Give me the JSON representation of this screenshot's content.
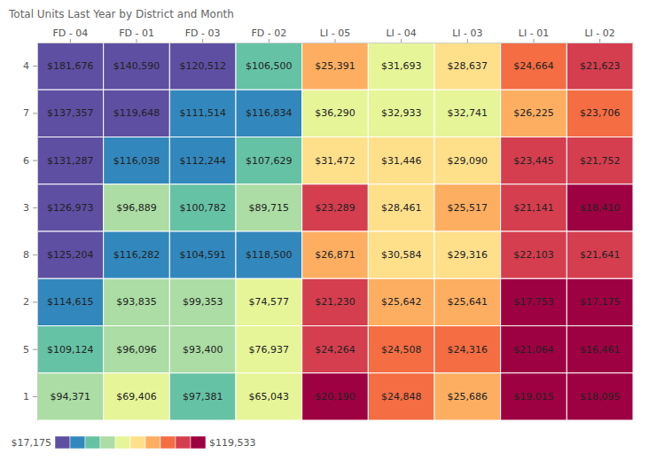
{
  "chart_data": {
    "type": "heatmap",
    "title": "Total Units Last Year by District and Month",
    "columns": [
      "FD - 04",
      "FD - 01",
      "FD - 03",
      "FD - 02",
      "LI - 05",
      "LI - 04",
      "LI - 03",
      "LI - 01",
      "LI - 02"
    ],
    "rows": [
      "4",
      "7",
      "6",
      "3",
      "8",
      "2",
      "5",
      "1"
    ],
    "values": [
      [
        181676,
        140590,
        120512,
        106500,
        25391,
        31693,
        28637,
        24664,
        21623
      ],
      [
        137357,
        119648,
        111514,
        116834,
        36290,
        32933,
        32741,
        26225,
        23706
      ],
      [
        131287,
        116038,
        112244,
        107629,
        31472,
        31446,
        29090,
        23445,
        21752
      ],
      [
        126973,
        96889,
        100782,
        89715,
        23289,
        28461,
        25517,
        21141,
        18410
      ],
      [
        125204,
        116282,
        104591,
        118500,
        26871,
        30584,
        29316,
        22103,
        21641
      ],
      [
        114615,
        93835,
        99353,
        74577,
        21230,
        25642,
        25641,
        17753,
        17175
      ],
      [
        109124,
        96096,
        93400,
        76937,
        24264,
        24508,
        24316,
        21064,
        16461
      ],
      [
        94371,
        69406,
        97381,
        65043,
        20190,
        24848,
        25686,
        19015,
        18095
      ]
    ],
    "value_labels": [
      [
        "$181,676",
        "$140,590",
        "$120,512",
        "$106,500",
        "$25,391",
        "$31,693",
        "$28,637",
        "$24,664",
        "$21,623"
      ],
      [
        "$137,357",
        "$119,648",
        "$111,514",
        "$116,834",
        "$36,290",
        "$32,933",
        "$32,741",
        "$26,225",
        "$23,706"
      ],
      [
        "$131,287",
        "$116,038",
        "$112,244",
        "$107,629",
        "$31,472",
        "$31,446",
        "$29,090",
        "$23,445",
        "$21,752"
      ],
      [
        "$126,973",
        "$96,889",
        "$100,782",
        "$89,715",
        "$23,289",
        "$28,461",
        "$25,517",
        "$21,141",
        "$18,410"
      ],
      [
        "$125,204",
        "$116,282",
        "$104,591",
        "$118,500",
        "$26,871",
        "$30,584",
        "$29,316",
        "$22,103",
        "$21,641"
      ],
      [
        "$114,615",
        "$93,835",
        "$99,353",
        "$74,577",
        "$21,230",
        "$25,642",
        "$25,641",
        "$17,753",
        "$17,175"
      ],
      [
        "$109,124",
        "$96,096",
        "$93,400",
        "$76,937",
        "$24,264",
        "$24,508",
        "$24,316",
        "$21,064",
        "$16,461"
      ],
      [
        "$94,371",
        "$69,406",
        "$97,381",
        "$65,043",
        "$20,190",
        "$24,848",
        "$25,686",
        "$19,015",
        "$18,095"
      ]
    ],
    "colors": [
      [
        "#5e4fa2",
        "#5e4fa2",
        "#5e4fa2",
        "#66c2a5",
        "#fdae61",
        "#e6f598",
        "#fee08b",
        "#f46d43",
        "#d53e4f"
      ],
      [
        "#5e4fa2",
        "#5e4fa2",
        "#3288bd",
        "#3288bd",
        "#e6f598",
        "#e6f598",
        "#e6f598",
        "#fdae61",
        "#f46d43"
      ],
      [
        "#5e4fa2",
        "#3288bd",
        "#3288bd",
        "#66c2a5",
        "#fee08b",
        "#fee08b",
        "#fee08b",
        "#d53e4f",
        "#d53e4f"
      ],
      [
        "#5e4fa2",
        "#abdda4",
        "#66c2a5",
        "#abdda4",
        "#d53e4f",
        "#fee08b",
        "#fdae61",
        "#d53e4f",
        "#9e0142"
      ],
      [
        "#5e4fa2",
        "#3288bd",
        "#3288bd",
        "#3288bd",
        "#fdae61",
        "#fee08b",
        "#fee08b",
        "#d53e4f",
        "#d53e4f"
      ],
      [
        "#3288bd",
        "#abdda4",
        "#abdda4",
        "#e6f598",
        "#d53e4f",
        "#fdae61",
        "#fdae61",
        "#9e0142",
        "#9e0142"
      ],
      [
        "#66c2a5",
        "#abdda4",
        "#abdda4",
        "#e6f598",
        "#d53e4f",
        "#f46d43",
        "#f46d43",
        "#9e0142",
        "#9e0142"
      ],
      [
        "#abdda4",
        "#e6f598",
        "#66c2a5",
        "#e6f598",
        "#9e0142",
        "#f46d43",
        "#fdae61",
        "#9e0142",
        "#9e0142"
      ]
    ],
    "data_labels": true,
    "colorbar": {
      "range": [
        17175,
        119533
      ],
      "ticks": [
        {
          "value": 17175,
          "label": "$17,175"
        },
        {
          "value": 119533,
          "label": "$119,533"
        }
      ],
      "colors": [
        "#5e4fa2",
        "#3288bd",
        "#66c2a5",
        "#abdda4",
        "#e6f598",
        "#fee08b",
        "#fdae61",
        "#f46d43",
        "#d53e4f",
        "#9e0142"
      ]
    }
  }
}
